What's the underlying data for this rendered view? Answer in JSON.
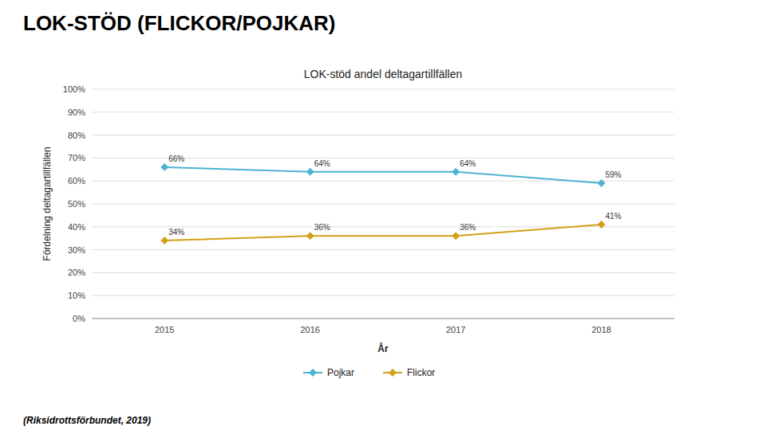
{
  "chart_data": {
    "type": "line",
    "title": "LOK-STÖD (FLICKOR/POJKAR)",
    "subtitle": "LOK-stöd andel deltagartillfällen",
    "x_label": "År",
    "y_label": "Fördelning deltagartillfällen",
    "footnote": "(Riksidrottsförbundet, 2019)",
    "categories": [
      "2015",
      "2016",
      "2017",
      "2018"
    ],
    "series": [
      {
        "name": "Pojkar",
        "color": "#4EB3D3",
        "marker": "diamond",
        "line_style": "solid",
        "values": [
          0.66,
          0.64,
          0.64,
          0.59
        ],
        "value_labels": [
          "66%",
          "64%",
          "64%",
          "59%"
        ]
      },
      {
        "name": "Flickor",
        "color": "#D4A017",
        "marker": "diamond",
        "line_style": "solid",
        "values": [
          0.34,
          0.36,
          0.36,
          0.41
        ],
        "value_labels": [
          "34%",
          "36%",
          "36%",
          "41%"
        ]
      }
    ],
    "ylim": [
      0.0,
      1.0
    ],
    "yticks": [
      {
        "value": 0.0,
        "label": "0%"
      },
      {
        "value": 0.1,
        "label": "10%"
      },
      {
        "value": 0.2,
        "label": "20%"
      },
      {
        "value": 0.3,
        "label": "30%"
      },
      {
        "value": 0.4,
        "label": "40%"
      },
      {
        "value": 0.5,
        "label": "50%"
      },
      {
        "value": 0.6,
        "label": "60%"
      },
      {
        "value": 0.7,
        "label": "70%"
      },
      {
        "value": 0.8,
        "label": "80%"
      },
      {
        "value": 0.9,
        "label": "90%"
      },
      {
        "value": 1.0,
        "label": "100%"
      }
    ],
    "grid": true,
    "legend": "bottom",
    "data_labels": true
  }
}
